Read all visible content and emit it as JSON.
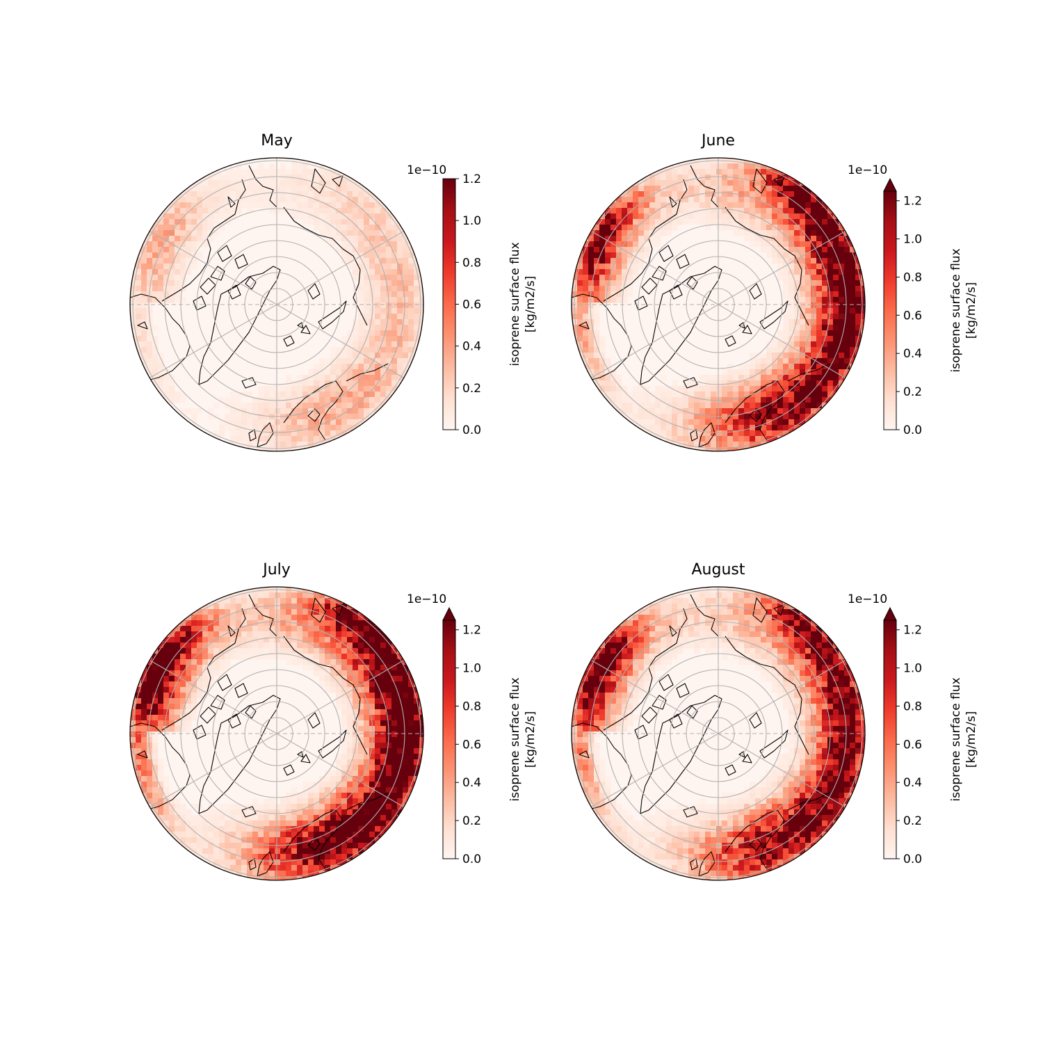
{
  "figure": {
    "colormap": {
      "name": "Reds",
      "stops": [
        "#fff5f0",
        "#fee0d2",
        "#fcbba1",
        "#fc9272",
        "#fb6a4a",
        "#ef3b2c",
        "#cb181d",
        "#a50f15",
        "#67000d"
      ]
    },
    "colorbar": {
      "label_line1": "isoprene surface flux",
      "label_line2": "[kg/m2/s]",
      "offset_text": "1e−10",
      "ticks": [
        "0.0",
        "0.2",
        "0.4",
        "0.6",
        "0.8",
        "1.0",
        "1.2"
      ]
    },
    "panels": [
      {
        "title": "May",
        "vmax": 1.2,
        "extend": "neither",
        "intensity": {
          "boreal_east": 0.22,
          "boreal_west": 0.28,
          "europe": 0.25,
          "hot_east": 0.1,
          "hot_west": 0.15
        }
      },
      {
        "title": "June",
        "vmax": 1.25,
        "extend": "max",
        "intensity": {
          "boreal_east": 0.75,
          "boreal_west": 0.65,
          "europe": 0.7,
          "hot_east": 1.2,
          "hot_west": 0.9
        }
      },
      {
        "title": "July",
        "vmax": 1.25,
        "extend": "max",
        "intensity": {
          "boreal_east": 0.9,
          "boreal_west": 1.0,
          "europe": 0.95,
          "hot_east": 1.3,
          "hot_west": 1.2
        }
      },
      {
        "title": "August",
        "vmax": 1.25,
        "extend": "max",
        "intensity": {
          "boreal_east": 0.6,
          "boreal_west": 0.8,
          "europe": 0.8,
          "hot_east": 1.15,
          "hot_west": 1.1
        }
      }
    ]
  }
}
